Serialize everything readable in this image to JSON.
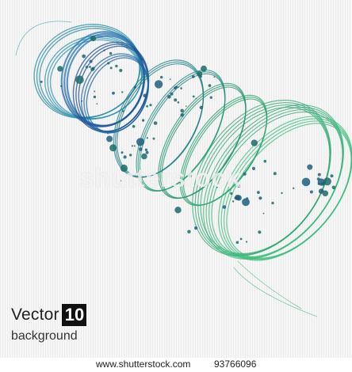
{
  "watermark": "shutterstock",
  "caption": {
    "title": "Vector",
    "badge": "10",
    "subtitle": "background"
  },
  "footer": {
    "site": "www.shutterstock.com",
    "image_id": "93766096"
  },
  "colors": {
    "blue": "#1d5fa8",
    "teal": "#1f8c7a",
    "green": "#2fae6e",
    "dot": "#1c6b68"
  },
  "icons": [
    "spiral-graphic"
  ]
}
